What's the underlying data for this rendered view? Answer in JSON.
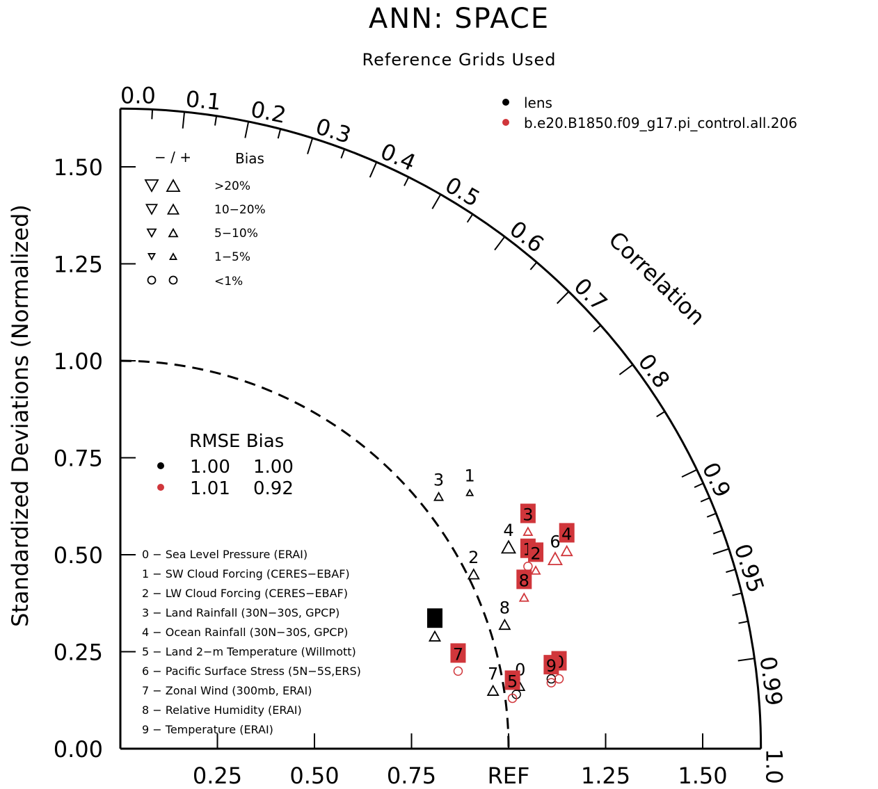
{
  "chart_data": {
    "type": "taylor",
    "title": "ANN: SPACE",
    "subtitle": "Reference Grids Used",
    "ylabel": "Standardized Deviations (Normalized)",
    "correlation_label": "Correlation",
    "ref_label": "REF",
    "std_ticks": [
      "0.00",
      "0.25",
      "0.50",
      "0.75",
      "1.00",
      "1.25",
      "1.50"
    ],
    "x_ticks": [
      "0.25",
      "0.50",
      "0.75",
      "1.25",
      "1.50"
    ],
    "correlation_ticks": [
      "0.0",
      "0.1",
      "0.2",
      "0.3",
      "0.4",
      "0.5",
      "0.6",
      "0.7",
      "0.8",
      "0.9",
      "0.95",
      "0.99",
      "1.0"
    ],
    "std_range": [
      0,
      1.65
    ],
    "cases": [
      {
        "name": "lens",
        "color": "#000000"
      },
      {
        "name": "b.e20.B1850.f09_g17.pi_control.all.206",
        "color": "#d0363b"
      }
    ],
    "bias_legend": {
      "header_sign": "− / +",
      "header_bias": "Bias",
      "rows": [
        ">20%",
        "10−20%",
        "5−10%",
        "1−5%",
        "<1%"
      ]
    },
    "rmse_bias_table": {
      "header": "RMSE Bias",
      "rows": [
        {
          "rmse": "1.00",
          "bias": "1.00",
          "color": "#000000"
        },
        {
          "rmse": "1.01",
          "bias": "0.92",
          "color": "#d0363b"
        }
      ]
    },
    "variables": [
      "0 − Sea Level Pressure (ERAI)",
      "1 − SW Cloud Forcing (CERES−EBAF)",
      "2 − LW Cloud Forcing (CERES−EBAF)",
      "3 − Land Rainfall (30N−30S, GPCP)",
      "4 − Ocean Rainfall (30N−30S, GPCP)",
      "5 − Land 2−m Temperature (Willmott)",
      "6 − Pacific Surface Stress (5N−5S,ERS)",
      "7 − Zonal Wind (300mb, ERAI)",
      "8 − Relative Humidity (ERAI)",
      "9 − Temperature (ERAI)"
    ],
    "points": [
      {
        "case": 0,
        "label": "0",
        "x": 1.03,
        "y": 0.16,
        "bias": "up-small",
        "boxed": false
      },
      {
        "case": 0,
        "label": "1",
        "x": 0.9,
        "y": 0.66,
        "bias": "up-tiny",
        "boxed": false
      },
      {
        "case": 0,
        "label": "2",
        "x": 0.91,
        "y": 0.45,
        "bias": "up-mid",
        "boxed": false
      },
      {
        "case": 0,
        "label": "3",
        "x": 0.82,
        "y": 0.65,
        "bias": "up-small",
        "boxed": false
      },
      {
        "case": 0,
        "label": "4",
        "x": 1.0,
        "y": 0.52,
        "bias": "up-big",
        "boxed": false
      },
      {
        "case": 0,
        "label": "5",
        "x": 1.02,
        "y": 0.14,
        "bias": "circle",
        "boxed": false
      },
      {
        "case": 0,
        "label": "6",
        "x": 0.81,
        "y": 0.29,
        "bias": "up-mid",
        "boxed": true
      },
      {
        "case": 0,
        "label": "7",
        "x": 0.96,
        "y": 0.15,
        "bias": "up-mid",
        "boxed": false
      },
      {
        "case": 0,
        "label": "8",
        "x": 0.99,
        "y": 0.32,
        "bias": "up-mid",
        "boxed": false
      },
      {
        "case": 0,
        "label": "9",
        "x": 1.11,
        "y": 0.18,
        "bias": "circle",
        "boxed": false
      },
      {
        "case": 1,
        "label": "0",
        "x": 1.13,
        "y": 0.18,
        "bias": "circle",
        "boxed": true
      },
      {
        "case": 1,
        "label": "1",
        "x": 1.05,
        "y": 0.47,
        "bias": "circle",
        "boxed": true
      },
      {
        "case": 1,
        "label": "2",
        "x": 1.07,
        "y": 0.46,
        "bias": "up-small",
        "boxed": true
      },
      {
        "case": 1,
        "label": "3",
        "x": 1.05,
        "y": 0.56,
        "bias": "up-small",
        "boxed": true
      },
      {
        "case": 1,
        "label": "4",
        "x": 1.15,
        "y": 0.51,
        "bias": "up-mid",
        "boxed": true
      },
      {
        "case": 1,
        "label": "5",
        "x": 1.01,
        "y": 0.13,
        "bias": "circle",
        "boxed": true
      },
      {
        "case": 1,
        "label": "6",
        "x": 1.12,
        "y": 0.49,
        "bias": "up-big",
        "boxed": false
      },
      {
        "case": 1,
        "label": "7",
        "x": 0.87,
        "y": 0.2,
        "bias": "circle",
        "boxed": true
      },
      {
        "case": 1,
        "label": "8",
        "x": 1.04,
        "y": 0.39,
        "bias": "up-small",
        "boxed": true
      },
      {
        "case": 1,
        "label": "9",
        "x": 1.11,
        "y": 0.17,
        "bias": "circle",
        "boxed": true
      }
    ]
  }
}
